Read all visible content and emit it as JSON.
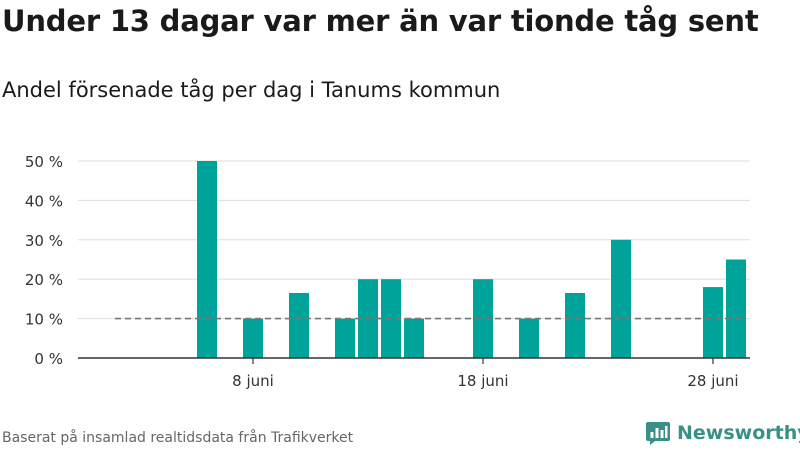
{
  "title": "Under 13 dagar var mer än var tionde tåg sent",
  "subtitle": "Andel försenade tåg per dag i Tanums kommun",
  "source": "Baserat på insamlad realtidsdata från Trafikverket",
  "brand": {
    "name": "Newsworthy",
    "logo_icon": "bar-chart-logo-icon"
  },
  "colors": {
    "bar": "#00a399",
    "reference_line": "#777777",
    "grid": "#dddddd",
    "brand": "#3a8f86"
  },
  "chart_data": {
    "type": "bar",
    "x_unit": "day of June",
    "xlim": [
      1,
      30
    ],
    "ylim": [
      0,
      50
    ],
    "y_ticks": [
      {
        "value": 0,
        "label": "0 %"
      },
      {
        "value": 10,
        "label": "10 %"
      },
      {
        "value": 20,
        "label": "20 %"
      },
      {
        "value": 30,
        "label": "30 %"
      },
      {
        "value": 40,
        "label": "40 %"
      },
      {
        "value": 50,
        "label": "50 %"
      }
    ],
    "x_ticks": [
      {
        "value": 8,
        "label": "8 juni"
      },
      {
        "value": 18,
        "label": "18 juni"
      },
      {
        "value": 28,
        "label": "28 juni"
      }
    ],
    "grid": true,
    "reference_line": {
      "value": 10,
      "style": "dashed"
    },
    "points": [
      {
        "day": 6,
        "value": 50
      },
      {
        "day": 8,
        "value": 10
      },
      {
        "day": 10,
        "value": 16.5
      },
      {
        "day": 12,
        "value": 10
      },
      {
        "day": 13,
        "value": 20
      },
      {
        "day": 14,
        "value": 20
      },
      {
        "day": 15,
        "value": 10
      },
      {
        "day": 18,
        "value": 20
      },
      {
        "day": 20,
        "value": 10
      },
      {
        "day": 22,
        "value": 16.5
      },
      {
        "day": 24,
        "value": 30
      },
      {
        "day": 28,
        "value": 18
      },
      {
        "day": 29,
        "value": 25
      }
    ]
  }
}
